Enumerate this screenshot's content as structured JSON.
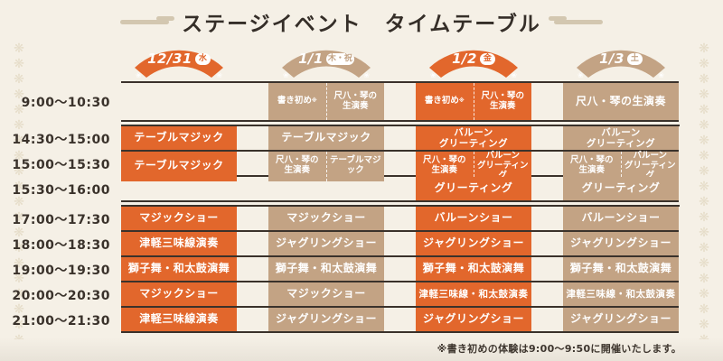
{
  "title": "ステージイベント　タイムテーブル",
  "footnote": "※書き初めの体験は9:00～9:50に開催いたします。",
  "colors": {
    "orange": "#E2672C",
    "tan": "#C3A384",
    "background": "#F5F0E6",
    "line": "#3A322B",
    "pattern": "#E6DDC9"
  },
  "icons": {
    "pattern_glyph": "❋",
    "plum_blossom_glyph": "❀"
  },
  "columns": [
    {
      "date": "12/31",
      "day": "水",
      "color": "orange"
    },
    {
      "date": "1/1",
      "day": "木・祝",
      "color": "tan"
    },
    {
      "date": "1/2",
      "day": "金",
      "color": "orange"
    },
    {
      "date": "1/3",
      "day": "土",
      "color": "tan"
    }
  ],
  "rows": [
    {
      "time": "9:00～10:30",
      "tall": true,
      "gap_after": true,
      "cells": [
        {
          "type": "empty"
        },
        {
          "type": "split",
          "left": "書き初め",
          "left_note": "※",
          "right": "尺八・琴の\n生演奏"
        },
        {
          "type": "split",
          "left": "書き初め",
          "left_note": "※",
          "right": "尺八・琴の\n生演奏"
        },
        {
          "type": "single",
          "label": "尺八・琴の生演奏"
        }
      ]
    },
    {
      "time": "14:30～15:00",
      "cells": [
        {
          "type": "single",
          "label": "テーブルマジック"
        },
        {
          "type": "single",
          "label": "テーブルマジック"
        },
        {
          "type": "single",
          "label": "バルーン\nグリーティング"
        },
        {
          "type": "single",
          "label": "バルーン\nグリーティング"
        }
      ]
    },
    {
      "time": "15:00～15:30",
      "cells": [
        {
          "type": "single",
          "label": "テーブルマジック"
        },
        {
          "type": "split",
          "left": "尺八・琴の\n生演奏",
          "right": "テーブルマジック"
        },
        {
          "type": "split",
          "left": "尺八・琴の\n生演奏",
          "right": "バルーン\nグリーティング"
        },
        {
          "type": "split",
          "left": "尺八・琴の\n生演奏",
          "right": "バルーン\nグリーティング"
        }
      ]
    },
    {
      "time": "15:30～16:00",
      "gap_after": true,
      "cells": [
        {
          "type": "empty"
        },
        {
          "type": "empty"
        },
        {
          "type": "single",
          "label": "グリーティング"
        },
        {
          "type": "single",
          "label": "グリーティング"
        }
      ]
    },
    {
      "time": "17:00～17:30",
      "cells": [
        {
          "type": "single",
          "label": "マジックショー"
        },
        {
          "type": "single",
          "label": "マジックショー"
        },
        {
          "type": "single",
          "label": "バルーンショー"
        },
        {
          "type": "single",
          "label": "バルーンショー"
        }
      ]
    },
    {
      "time": "18:00～18:30",
      "cells": [
        {
          "type": "single",
          "label": "津軽三味線演奏"
        },
        {
          "type": "single",
          "label": "ジャグリングショー"
        },
        {
          "type": "single",
          "label": "ジャグリングショー"
        },
        {
          "type": "single",
          "label": "ジャグリングショー"
        }
      ]
    },
    {
      "time": "19:00～19:30",
      "cells": [
        {
          "type": "single",
          "label": "獅子舞・和太鼓演舞"
        },
        {
          "type": "single",
          "label": "獅子舞・和太鼓演舞"
        },
        {
          "type": "single",
          "label": "獅子舞・和太鼓演舞"
        },
        {
          "type": "single",
          "label": "獅子舞・和太鼓演舞"
        }
      ]
    },
    {
      "time": "20:00～20:30",
      "cells": [
        {
          "type": "single",
          "label": "マジックショー"
        },
        {
          "type": "single",
          "label": "マジックショー"
        },
        {
          "type": "single",
          "label": "津軽三味線・和太鼓演奏"
        },
        {
          "type": "single",
          "label": "津軽三味線・和太鼓演奏"
        }
      ]
    },
    {
      "time": "21:00～21:30",
      "cells": [
        {
          "type": "single",
          "label": "津軽三味線演奏"
        },
        {
          "type": "single",
          "label": "ジャグリングショー"
        },
        {
          "type": "single",
          "label": "ジャグリングショー"
        },
        {
          "type": "single",
          "label": "ジャグリングショー"
        }
      ]
    }
  ]
}
